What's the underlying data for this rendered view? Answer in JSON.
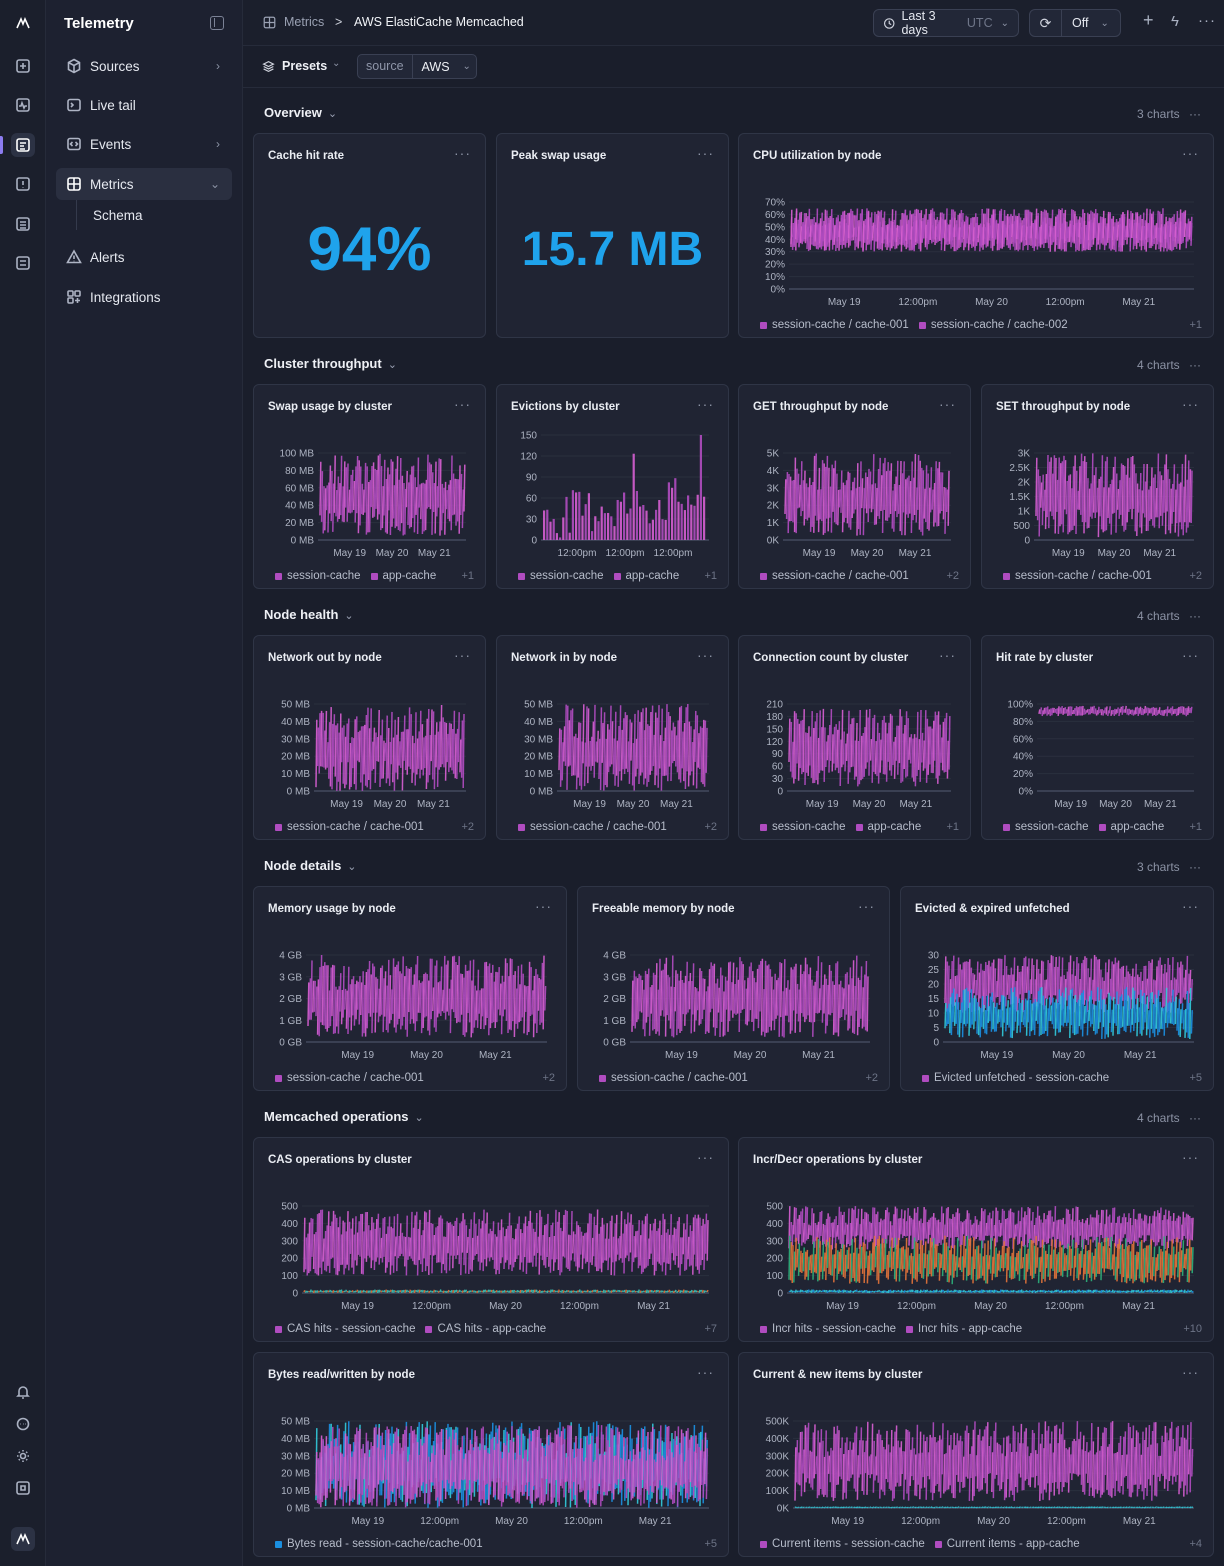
{
  "rail": {
    "icons": [
      "logo-icon",
      "sparkle-icon",
      "pulse-icon",
      "logs-icon",
      "alert-icon",
      "database-icon",
      "sliders-icon",
      "bell-icon",
      "chat-icon",
      "sun-icon",
      "command-icon",
      "account-logo-icon"
    ]
  },
  "sidebar": {
    "brand": "Telemetry",
    "items": [
      {
        "label": "Sources",
        "icon": "cube-icon",
        "chev": "›"
      },
      {
        "label": "Live tail",
        "icon": "terminal-icon",
        "chev": ""
      },
      {
        "label": "Events",
        "icon": "code-icon",
        "chev": "›"
      },
      {
        "label": "Metrics",
        "icon": "grid-icon",
        "chev": "⌄"
      },
      {
        "label": "Alerts",
        "icon": "warning-icon",
        "chev": ""
      },
      {
        "label": "Integrations",
        "icon": "integrations-icon",
        "chev": ""
      }
    ],
    "sub": "Schema"
  },
  "topbar": {
    "crumb1": "Metrics",
    "sep": ">",
    "crumb2": "AWS ElastiCache Memcached",
    "time": "Last 3 days",
    "tz": "UTC",
    "refresh": "Off"
  },
  "filters": {
    "presets": "Presets",
    "key": "source",
    "value": "AWS"
  },
  "sections": [
    {
      "title": "Overview",
      "count": "3 charts"
    },
    {
      "title": "Cluster throughput",
      "count": "4 charts"
    },
    {
      "title": "Node health",
      "count": "4 charts"
    },
    {
      "title": "Node details",
      "count": "3 charts"
    },
    {
      "title": "Memcached operations",
      "count": "4 charts"
    }
  ],
  "stats": [
    {
      "title": "Cache hit rate",
      "value": "94%"
    },
    {
      "title": "Peak swap usage",
      "value": "15.7 MB"
    }
  ],
  "colors": {
    "magenta": "#b04cc0",
    "pink": "#d65fd1",
    "cyan": "#32c8d8",
    "blue": "#1b8fe0",
    "orange": "#e0733a",
    "green": "#2dae7a",
    "teal": "#3ec1b5",
    "accent": "#1fa3ec"
  },
  "chart_data": [
    {
      "id": "cpu",
      "title": "CPU utilization by node",
      "type": "area",
      "yticks": [
        "70%",
        "60%",
        "50%",
        "40%",
        "30%",
        "20%",
        "10%",
        "0%"
      ],
      "xticks": [
        "May 19",
        "12:00pm",
        "May 20",
        "12:00pm",
        "May 21"
      ],
      "ylim": [
        0,
        70
      ],
      "series": [
        {
          "name": "session-cache / cache-001",
          "band": [
            30,
            65
          ]
        },
        {
          "name": "session-cache / cache-002",
          "band": [
            30,
            65
          ]
        }
      ],
      "legend": [
        "session-cache / cache-001",
        "session-cache / cache-002"
      ],
      "more": "+1"
    },
    {
      "id": "swap",
      "title": "Swap usage by cluster",
      "type": "area",
      "yticks": [
        "100 MB",
        "80 MB",
        "60 MB",
        "40 MB",
        "20 MB",
        "0 MB"
      ],
      "xticks": [
        "May 19",
        "May 20",
        "May 21"
      ],
      "ylim": [
        0,
        100
      ],
      "series": [
        {
          "name": "session-cache",
          "band": [
            5,
            100
          ]
        }
      ],
      "legend": [
        "session-cache",
        "app-cache"
      ],
      "more": "+1"
    },
    {
      "id": "evict",
      "title": "Evictions by cluster",
      "type": "bar",
      "yticks": [
        "150",
        "120",
        "90",
        "60",
        "30",
        "0"
      ],
      "xticks": [
        "12:00pm",
        "12:00pm",
        "12:00pm"
      ],
      "ylim": [
        0,
        150
      ],
      "series": [
        {
          "name": "session-cache",
          "band": [
            0,
            140
          ]
        }
      ],
      "legend": [
        "session-cache",
        "app-cache"
      ],
      "more": "+1"
    },
    {
      "id": "get",
      "title": "GET throughput by node",
      "type": "area",
      "yticks": [
        "5K",
        "4K",
        "3K",
        "2K",
        "1K",
        "0K"
      ],
      "xticks": [
        "May 19",
        "May 20",
        "May 21"
      ],
      "ylim": [
        0,
        5000
      ],
      "series": [
        {
          "name": "session-cache / cache-001",
          "band": [
            200,
            5000
          ]
        }
      ],
      "legend": [
        "session-cache / cache-001"
      ],
      "more": "+2"
    },
    {
      "id": "set",
      "title": "SET throughput by node",
      "type": "area",
      "yticks": [
        "3K",
        "2.5K",
        "2K",
        "1.5K",
        "1K",
        "500",
        "0"
      ],
      "xticks": [
        "May 19",
        "May 20",
        "May 21"
      ],
      "ylim": [
        0,
        3000
      ],
      "series": [
        {
          "name": "session-cache / cache-001",
          "band": [
            100,
            3000
          ]
        }
      ],
      "legend": [
        "session-cache / cache-001"
      ],
      "more": "+2"
    },
    {
      "id": "netout",
      "title": "Network out by node",
      "type": "area",
      "yticks": [
        "50 MB",
        "40 MB",
        "30 MB",
        "20 MB",
        "10 MB",
        "0 MB"
      ],
      "xticks": [
        "May 19",
        "May 20",
        "May 21"
      ],
      "ylim": [
        0,
        50
      ],
      "series": [
        {
          "name": "session-cache / cache-001",
          "band": [
            0,
            50
          ]
        }
      ],
      "legend": [
        "session-cache / cache-001"
      ],
      "more": "+2"
    },
    {
      "id": "netin",
      "title": "Network in by node",
      "type": "area",
      "yticks": [
        "50 MB",
        "40 MB",
        "30 MB",
        "20 MB",
        "10 MB",
        "0 MB"
      ],
      "xticks": [
        "May 19",
        "May 20",
        "May 21"
      ],
      "ylim": [
        0,
        50
      ],
      "series": [
        {
          "name": "session-cache / cache-001",
          "band": [
            0,
            50
          ]
        }
      ],
      "legend": [
        "session-cache / cache-001"
      ],
      "more": "+2"
    },
    {
      "id": "conn",
      "title": "Connection count by cluster",
      "type": "area",
      "yticks": [
        "210",
        "180",
        "150",
        "120",
        "90",
        "60",
        "30",
        "0"
      ],
      "xticks": [
        "May 19",
        "May 20",
        "May 21"
      ],
      "ylim": [
        0,
        210
      ],
      "series": [
        {
          "name": "session-cache",
          "band": [
            10,
            200
          ]
        }
      ],
      "legend": [
        "session-cache",
        "app-cache"
      ],
      "more": "+1"
    },
    {
      "id": "hit",
      "title": "Hit rate by cluster",
      "type": "area",
      "yticks": [
        "100%",
        "80%",
        "60%",
        "40%",
        "20%",
        "0%"
      ],
      "xticks": [
        "May 19",
        "May 20",
        "May 21"
      ],
      "ylim": [
        0,
        100
      ],
      "series": [
        {
          "name": "session-cache",
          "band": [
            86,
            98
          ]
        }
      ],
      "legend": [
        "session-cache",
        "app-cache"
      ],
      "more": "+1"
    },
    {
      "id": "mem",
      "title": "Memory usage by node",
      "type": "area",
      "yticks": [
        "4 GB",
        "3 GB",
        "2 GB",
        "1 GB",
        "0 GB"
      ],
      "xticks": [
        "May 19",
        "May 20",
        "May 21"
      ],
      "ylim": [
        0,
        4
      ],
      "series": [
        {
          "name": "session-cache / cache-001",
          "band": [
            0.2,
            4
          ]
        }
      ],
      "legend": [
        "session-cache / cache-001"
      ],
      "more": "+2"
    },
    {
      "id": "free",
      "title": "Freeable memory by node",
      "type": "area",
      "yticks": [
        "4 GB",
        "3 GB",
        "2 GB",
        "1 GB",
        "0 GB"
      ],
      "xticks": [
        "May 19",
        "May 20",
        "May 21"
      ],
      "ylim": [
        0,
        4
      ],
      "series": [
        {
          "name": "session-cache / cache-001",
          "band": [
            0.2,
            4
          ]
        }
      ],
      "legend": [
        "session-cache / cache-001"
      ],
      "more": "+2"
    },
    {
      "id": "evexp",
      "title": "Evicted & expired unfetched",
      "type": "area",
      "yticks": [
        "30",
        "25",
        "20",
        "15",
        "10",
        "5",
        "0"
      ],
      "xticks": [
        "May 19",
        "May 20",
        "May 21"
      ],
      "ylim": [
        0,
        30
      ],
      "series": [
        {
          "name": "Evicted unfetched - session-cache",
          "band": [
            10,
            30
          ]
        },
        {
          "name": "",
          "band": [
            1,
            19
          ]
        }
      ],
      "legend": [
        "Evicted unfetched - session-cache"
      ],
      "more": "+5"
    },
    {
      "id": "cas",
      "title": "CAS operations by cluster",
      "type": "area",
      "yticks": [
        "500",
        "400",
        "300",
        "200",
        "100",
        "0"
      ],
      "xticks": [
        "May 19",
        "12:00pm",
        "May 20",
        "12:00pm",
        "May 21"
      ],
      "ylim": [
        0,
        500
      ],
      "series": [
        {
          "name": "CAS hits - session-cache",
          "band": [
            100,
            480
          ]
        },
        {
          "name": "",
          "band": [
            0,
            20
          ]
        }
      ],
      "legend": [
        "CAS hits - session-cache",
        "CAS hits - app-cache"
      ],
      "more": "+7"
    },
    {
      "id": "incr",
      "title": "Incr/Decr operations by cluster",
      "type": "area",
      "yticks": [
        "500",
        "400",
        "300",
        "200",
        "100",
        "0"
      ],
      "xticks": [
        "May 19",
        "12:00pm",
        "May 20",
        "12:00pm",
        "May 21"
      ],
      "ylim": [
        0,
        500
      ],
      "series": [
        {
          "name": "Incr hits - session-cache",
          "band": [
            250,
            500
          ]
        },
        {
          "name": "",
          "band": [
            50,
            330
          ]
        },
        {
          "name": "",
          "band": [
            0,
            20
          ]
        }
      ],
      "legend": [
        "Incr hits - session-cache",
        "Incr hits - app-cache"
      ],
      "more": "+10"
    },
    {
      "id": "bytes",
      "title": "Bytes read/written by node",
      "type": "area",
      "yticks": [
        "50 MB",
        "40 MB",
        "30 MB",
        "20 MB",
        "10 MB",
        "0 MB"
      ],
      "xticks": [
        "May 19",
        "12:00pm",
        "May 20",
        "12:00pm",
        "May 21"
      ],
      "ylim": [
        0,
        50
      ],
      "series": [
        {
          "name": "Bytes read - session-cache/cache-001",
          "band": [
            0,
            50
          ]
        },
        {
          "name": "",
          "band": [
            0,
            48
          ]
        }
      ],
      "legend": [
        "Bytes read - session-cache/cache-001"
      ],
      "more": "+5"
    },
    {
      "id": "items",
      "title": "Current & new items by cluster",
      "type": "area",
      "yticks": [
        "500K",
        "400K",
        "300K",
        "200K",
        "100K",
        "0K"
      ],
      "xticks": [
        "May 19",
        "12:00pm",
        "May 20",
        "12:00pm",
        "May 21"
      ],
      "ylim": [
        0,
        500000
      ],
      "series": [
        {
          "name": "Current items - session-cache",
          "band": [
            40000,
            500000
          ]
        },
        {
          "name": "",
          "band": [
            0,
            8000
          ]
        }
      ],
      "legend": [
        "Current items - session-cache",
        "Current items - app-cache"
      ],
      "more": "+4"
    }
  ]
}
